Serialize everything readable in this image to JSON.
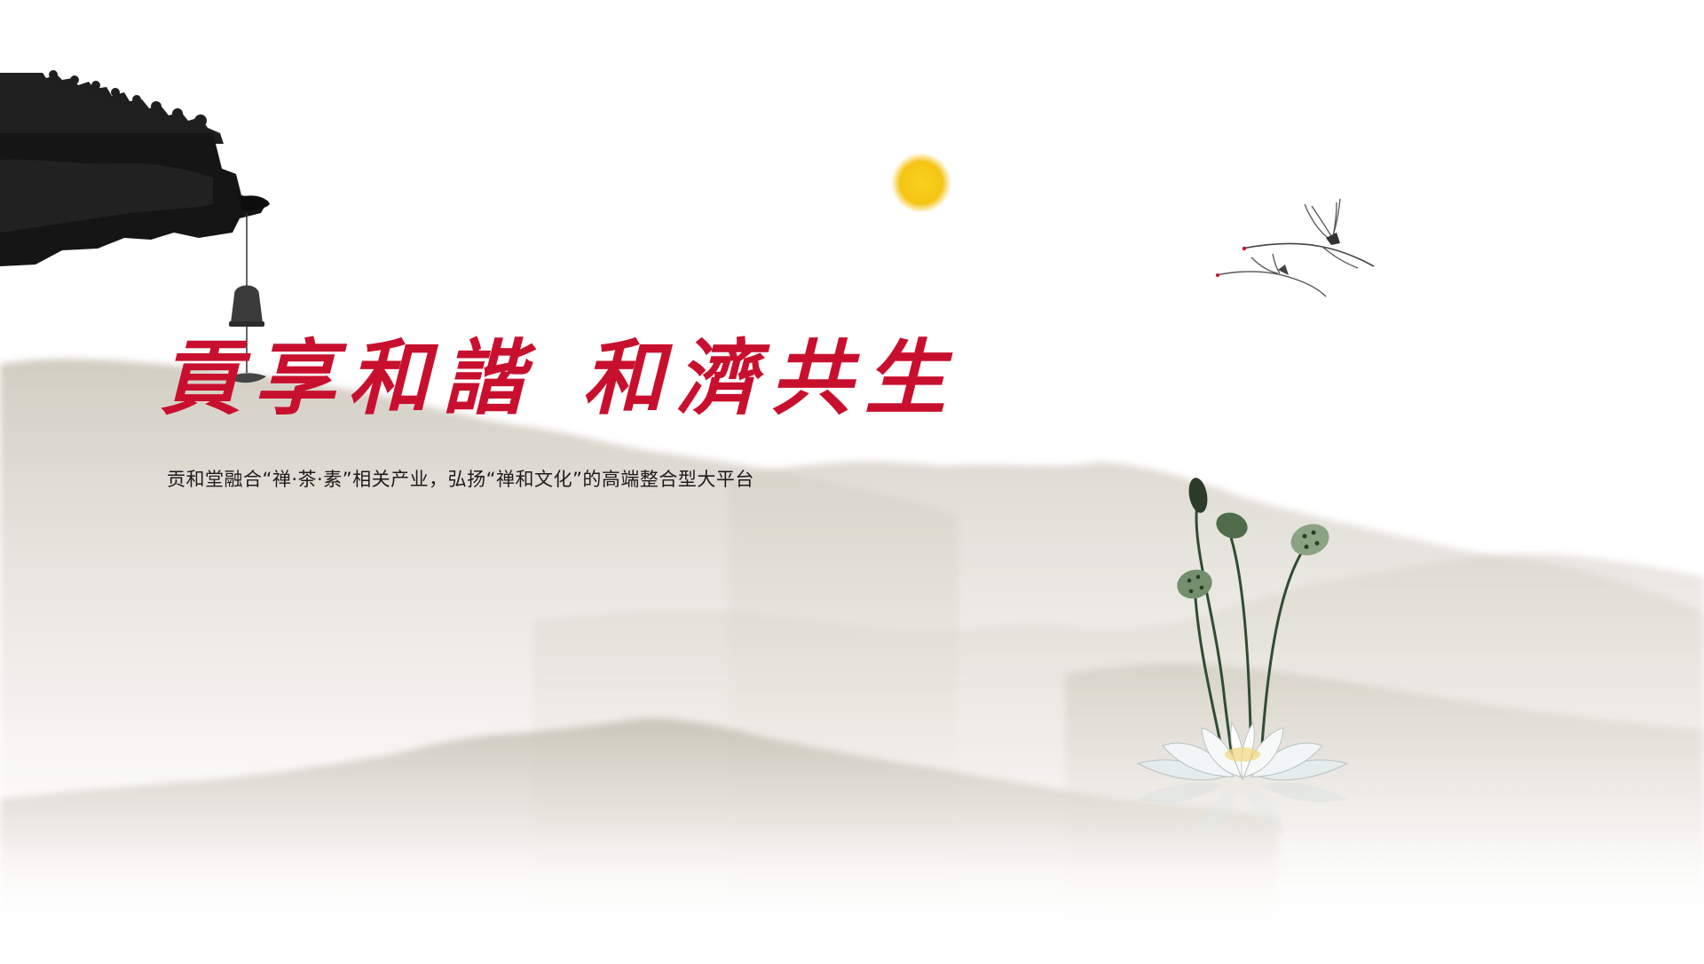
{
  "hero": {
    "slogan_part1": "貢享和諧",
    "slogan_part2": "和濟共生",
    "subtitle": "贡和堂融合“禅·茶·素”相关产业，弘扬“禅和文化”的高端整合型大平台"
  },
  "colors": {
    "slogan_red": "#c8102e",
    "sun_yellow": "#f7c81a",
    "ink_black": "#1a1a1a",
    "mountain_gray": "#cdc8bd"
  },
  "decorations": {
    "roof": "temple-roof-eave-icon",
    "bell": "wind-chime-bell-icon",
    "sun": "sun-icon",
    "cranes": "flying-cranes-icon",
    "lotus": "lotus-flower-icon"
  }
}
